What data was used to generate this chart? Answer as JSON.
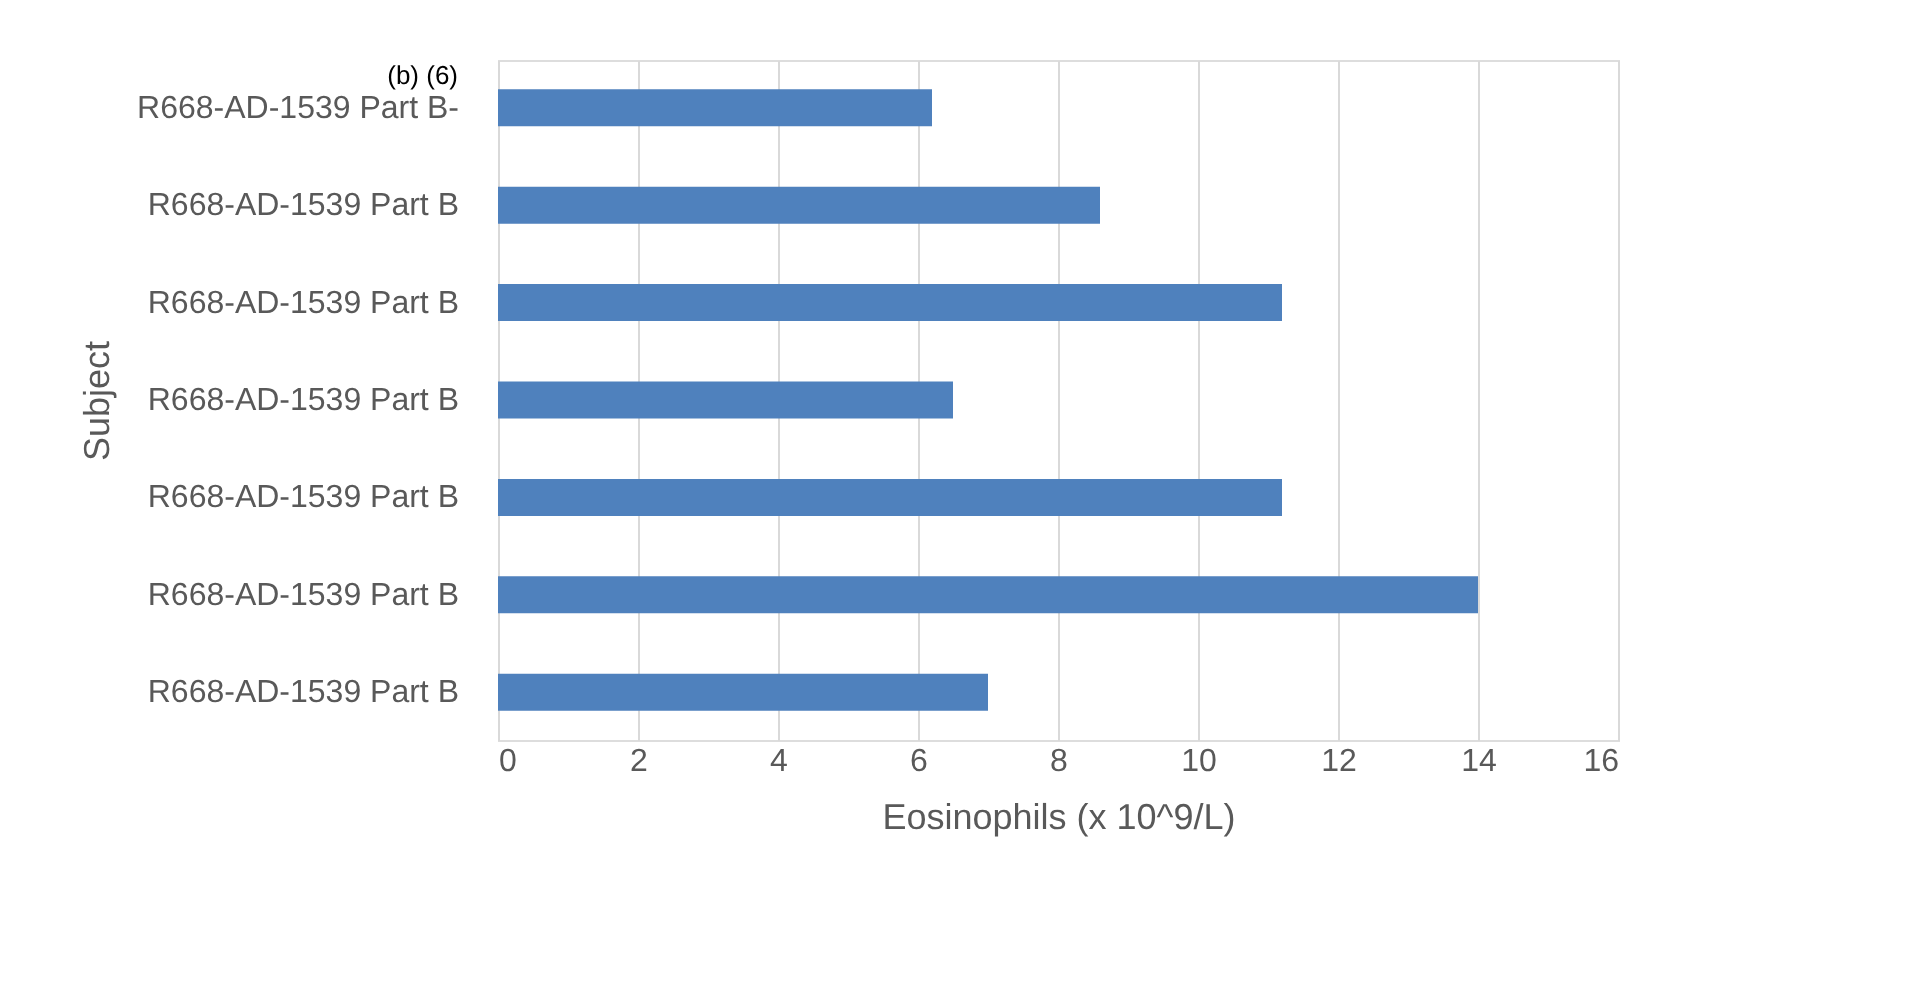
{
  "chart_data": {
    "type": "bar",
    "orientation": "horizontal",
    "xlabel": "Eosinophils (x 10^9/L)",
    "ylabel": "Subject",
    "categories": [
      "R668-AD-1539 Part B-",
      "R668-AD-1539 Part B",
      "R668-AD-1539 Part B",
      "R668-AD-1539 Part B",
      "R668-AD-1539 Part B",
      "R668-AD-1539 Part B",
      "R668-AD-1539 Part B"
    ],
    "values": [
      6.2,
      8.6,
      11.2,
      6.5,
      11.2,
      14.0,
      7.0
    ],
    "color": "#4f81bd",
    "xlim": [
      0,
      16
    ],
    "xticks": [
      0,
      2,
      4,
      6,
      8,
      10,
      12,
      14,
      16
    ],
    "grid": "x",
    "annotations": [
      "(b) (6)"
    ]
  }
}
